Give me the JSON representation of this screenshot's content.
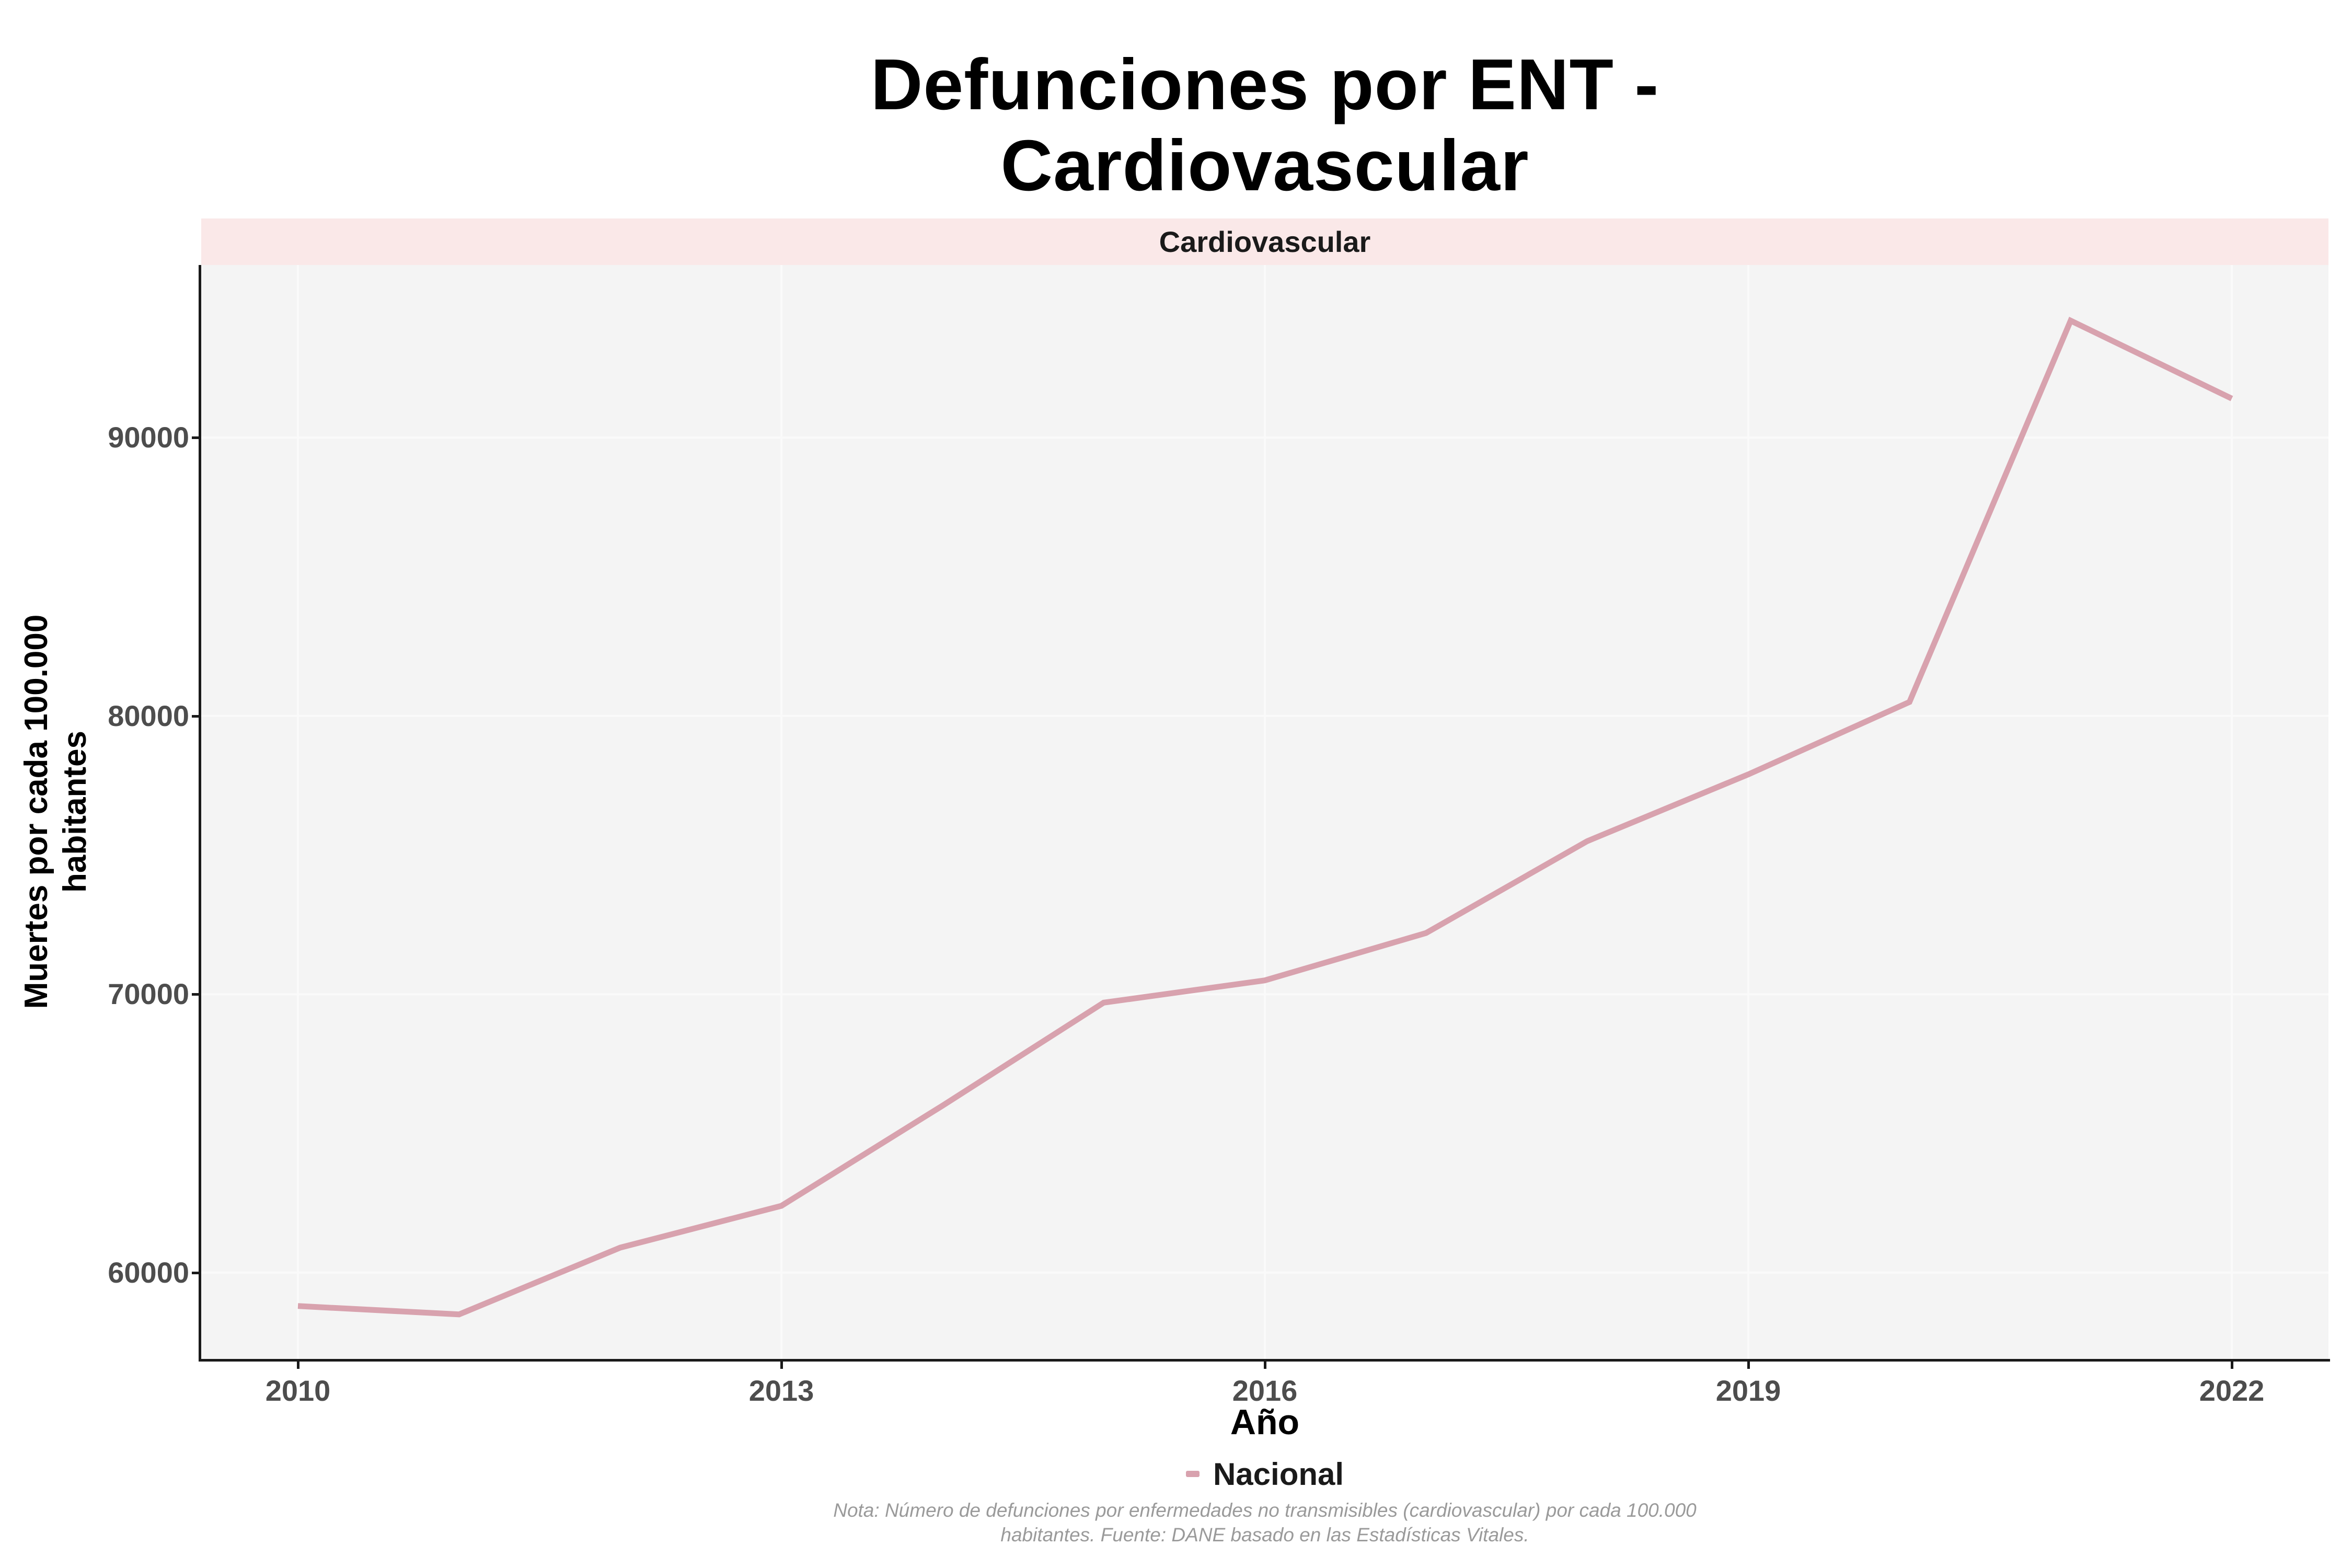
{
  "title": {
    "line1": "Defunciones por ENT -",
    "line2": "Cardiovascular"
  },
  "facet_strip_label": "Cardiovascular",
  "axes": {
    "x_title": "Año",
    "y_title_line1": "Muertes por cada 100.000",
    "y_title_line2": "habitantes"
  },
  "legend": {
    "position": "bottom",
    "label": "Nacional"
  },
  "note": {
    "line1": "Nota: Número de defunciones por enfermedades no transmisibles (cardiovascular) por cada 100.000",
    "line2": "habitantes. Fuente: DANE basado en las Estadísticas Vitales."
  },
  "colors": {
    "line": "#D8A2AE",
    "legend_key": "#D8A2AE",
    "panel_bg": "#F4F4F4",
    "strip_bg": "#FAE8E8",
    "grid": "#FAFAFA",
    "axis": "#1A1A1A",
    "tick_text": "#4D4D4D",
    "note_text": "#9A9A9A",
    "title_text": "#000000"
  },
  "chart_data": {
    "type": "line",
    "title": "Defunciones por ENT - Cardiovascular",
    "facet": "Cardiovascular",
    "xlabel": "Año",
    "ylabel": "Muertes por cada 100.000 habitantes",
    "legend_position": "bottom",
    "grid": "major",
    "x": [
      2010,
      2011,
      2012,
      2013,
      2014,
      2015,
      2016,
      2017,
      2018,
      2019,
      2020,
      2021,
      2022
    ],
    "series": [
      {
        "name": "Nacional",
        "color": "#D8A2AE",
        "values": [
          58800,
          58500,
          60900,
          62400,
          66000,
          69700,
          70500,
          72200,
          75500,
          77900,
          80500,
          94200,
          91400
        ]
      }
    ],
    "x_ticks": [
      2010,
      2013,
      2016,
      2019,
      2022
    ],
    "y_ticks": [
      60000,
      70000,
      80000,
      90000
    ],
    "xlim": [
      2009.4,
      2022.6
    ],
    "ylim": [
      56900,
      96200
    ]
  }
}
